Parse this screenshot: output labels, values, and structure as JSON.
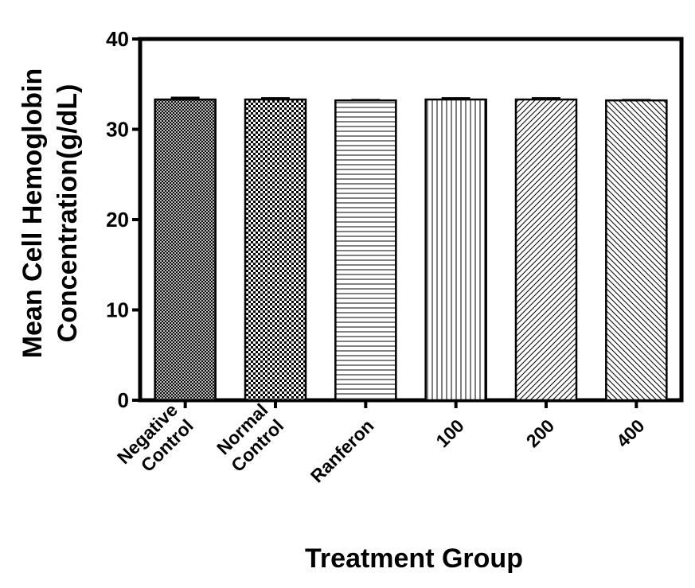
{
  "chart_data": {
    "type": "bar",
    "title": "",
    "xlabel": "Treatment Group",
    "ylabel_lines": [
      "Mean Cell Hemoglobin",
      "Concentration(g/dL)"
    ],
    "ylim": [
      0,
      40
    ],
    "yticks": [
      0,
      10,
      20,
      30,
      40
    ],
    "categories": [
      [
        "Negative",
        "Control"
      ],
      [
        "Normal",
        "Control"
      ],
      [
        "Ranferon"
      ],
      [
        "100"
      ],
      [
        "200"
      ],
      [
        "400"
      ]
    ],
    "values": [
      33.3,
      33.3,
      33.2,
      33.3,
      33.3,
      33.2
    ],
    "errors": [
      0.2,
      0.15,
      0.05,
      0.15,
      0.15,
      0.05
    ],
    "patterns": [
      "crosshatch-dense",
      "checker",
      "horizontal",
      "vertical",
      "diagonal-up",
      "diagonal-down"
    ],
    "colors": {
      "bar_fill": "#ffffff",
      "ink": "#000000"
    }
  }
}
